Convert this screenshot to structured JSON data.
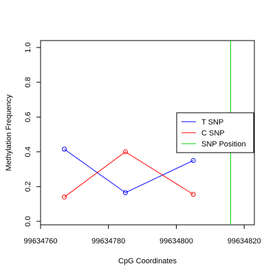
{
  "chart_data": {
    "type": "line",
    "title": "",
    "xlabel": "CpG Coordinates",
    "ylabel": "Methylation Frequency",
    "xlim": [
      99634760,
      99634823
    ],
    "ylim": [
      -0.02,
      1.04
    ],
    "x_ticks": [
      {
        "value": 99634760,
        "label": "99634760"
      },
      {
        "value": 99634780,
        "label": "99634780"
      },
      {
        "value": 99634800,
        "label": "99634800"
      },
      {
        "value": 99634820,
        "label": "99634820"
      }
    ],
    "y_ticks": [
      {
        "value": 0.0,
        "label": "0.0"
      },
      {
        "value": 0.2,
        "label": "0.2"
      },
      {
        "value": 0.4,
        "label": "0.4"
      },
      {
        "value": 0.6,
        "label": "0.6"
      },
      {
        "value": 0.8,
        "label": "0.8"
      },
      {
        "value": 1.0,
        "label": "1.0"
      }
    ],
    "series": [
      {
        "name": "T SNP",
        "color": "#0000ff",
        "points": [
          [
            99634767,
            0.415
          ],
          [
            99634785,
            0.165
          ],
          [
            99634805,
            0.35
          ]
        ]
      },
      {
        "name": "C SNP",
        "color": "#ff0000",
        "points": [
          [
            99634767,
            0.14
          ],
          [
            99634785,
            0.4
          ],
          [
            99634805,
            0.155
          ]
        ]
      }
    ],
    "snp_position": {
      "name": "SNP Position",
      "color": "#00cc00",
      "x": 99634816
    },
    "legend": {
      "placement": "right"
    },
    "grid": false
  }
}
